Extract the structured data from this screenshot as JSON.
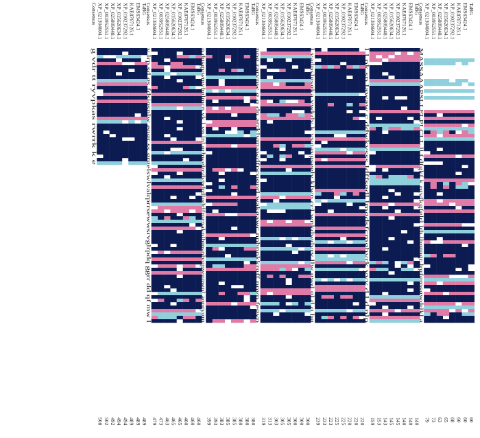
{
  "names": [
    "TaBG",
    "EMS63424.1",
    "KAE8767126.1",
    "XP_010237292.1",
    "XP_015620634.1",
    "XP_025809448.1",
    "XP_003952551.1",
    "XP_021304604.1"
  ],
  "consensus_label": "Consensus",
  "colors": {
    "identical": "#0c1b52",
    "high": "#e07aa6",
    "partial": "#8fd0dc"
  },
  "blocks": [
    {
      "ends": [
        "60",
        "60",
        "60",
        "68",
        "65",
        "63",
        "73",
        "79"
      ],
      "consensus": "MASSAAAPSLLFLPLCLL    ll  f     dfgkf  k rgvfkgfglrl  lrh lhrgpgr  lrgfgrpsgwdrlkl  a  "
    },
    {
      "ends": [
        "140",
        "140",
        "140",
        "145",
        "145",
        "143",
        "153",
        "159"
      ],
      "consensus": "l   l pk sp  lawaw  c   ddwkvsss ldffsgdl  lmgdsfcmghvrk yyv      d  l    d  nlp  "
    },
    {
      "ends": [
        "220",
        "220",
        "220",
        "225",
        "225",
        "223",
        "233",
        "239"
      ],
      "consensus": "l yadpslgsgka  ywkdy  k vvqaygseelv  klwp  ccl  wnkdwdvrv llw  gwd gl   d  q   hg  "
    },
    {
      "ends": [
        "300",
        "300",
        "300",
        "305",
        "305",
        "303",
        "313",
        "319"
      ],
      "consensus": "ppg   rarvpw g  q    dp    arrklvmawdfpcqgprl  wakgawc  nphppkkrgff ppvp  fegvp    "
    },
    {
      "ends": [
        "380",
        "380",
        "380",
        "385",
        "385",
        "383",
        "393",
        "399"
      ],
      "consensus": "p  dqsgvwmvhglmcp  yk l vn lnl  grhwelrcdvpdrdlgdrlfrprpakplhmsplygpwgpwpl aqrgygm  "
    },
    {
      "ends": [
        "460",
        "460",
        "460",
        "465",
        "465",
        "463",
        "473",
        "479"
      ],
      "consensus": "v  lrp  sd  gs    fdsiqsnlw eqgr ss grgelswlvalrprrsewwsrvglrpdq ggrr dd qf  mw  l  "
    },
    {
      "ends": [
        "489",
        "489",
        "489",
        "494",
        "494",
        "492",
        "502",
        "508"
      ],
      "consensus": "g  vdr  tt  ryvpkas  rwrrk  k  e  "
    }
  ]
}
